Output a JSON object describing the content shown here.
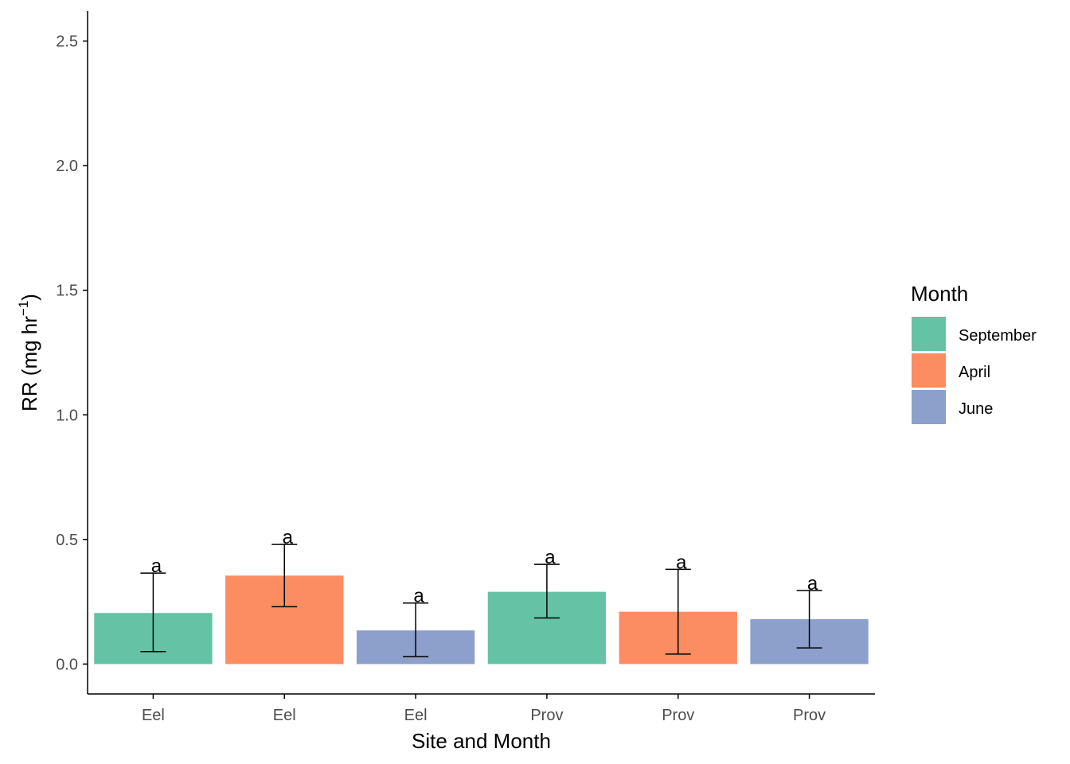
{
  "chart_data": {
    "type": "bar",
    "categories": [
      "Eel",
      "Eel",
      "Eel",
      "Prov",
      "Prov",
      "Prov"
    ],
    "values": [
      0.205,
      0.355,
      0.135,
      0.29,
      0.21,
      0.18
    ],
    "error_low": [
      0.05,
      0.23,
      0.03,
      0.185,
      0.04,
      0.065
    ],
    "error_high": [
      0.365,
      0.48,
      0.245,
      0.4,
      0.38,
      0.295
    ],
    "groups": [
      "September",
      "April",
      "June",
      "September",
      "April",
      "June"
    ],
    "sig_labels": [
      "a",
      "a",
      "a",
      "a",
      "a",
      "a"
    ],
    "xlabel": "Site and Month",
    "ylabel": {
      "main": "RR (mg  hr",
      "superscript": "−1",
      "close": ")"
    },
    "ylim": [
      -0.12,
      2.62
    ],
    "yticks": [
      0.0,
      0.5,
      1.0,
      1.5,
      2.0,
      2.5
    ],
    "ytick_labels": [
      "0.0",
      "0.5",
      "1.0",
      "1.5",
      "2.0",
      "2.5"
    ],
    "grid": false,
    "legend": {
      "title": "Month",
      "placement": "right",
      "entries": [
        {
          "name": "September",
          "color": "#66c2a5"
        },
        {
          "name": "April",
          "color": "#fc8d62"
        },
        {
          "name": "June",
          "color": "#8da0cb"
        }
      ]
    }
  }
}
